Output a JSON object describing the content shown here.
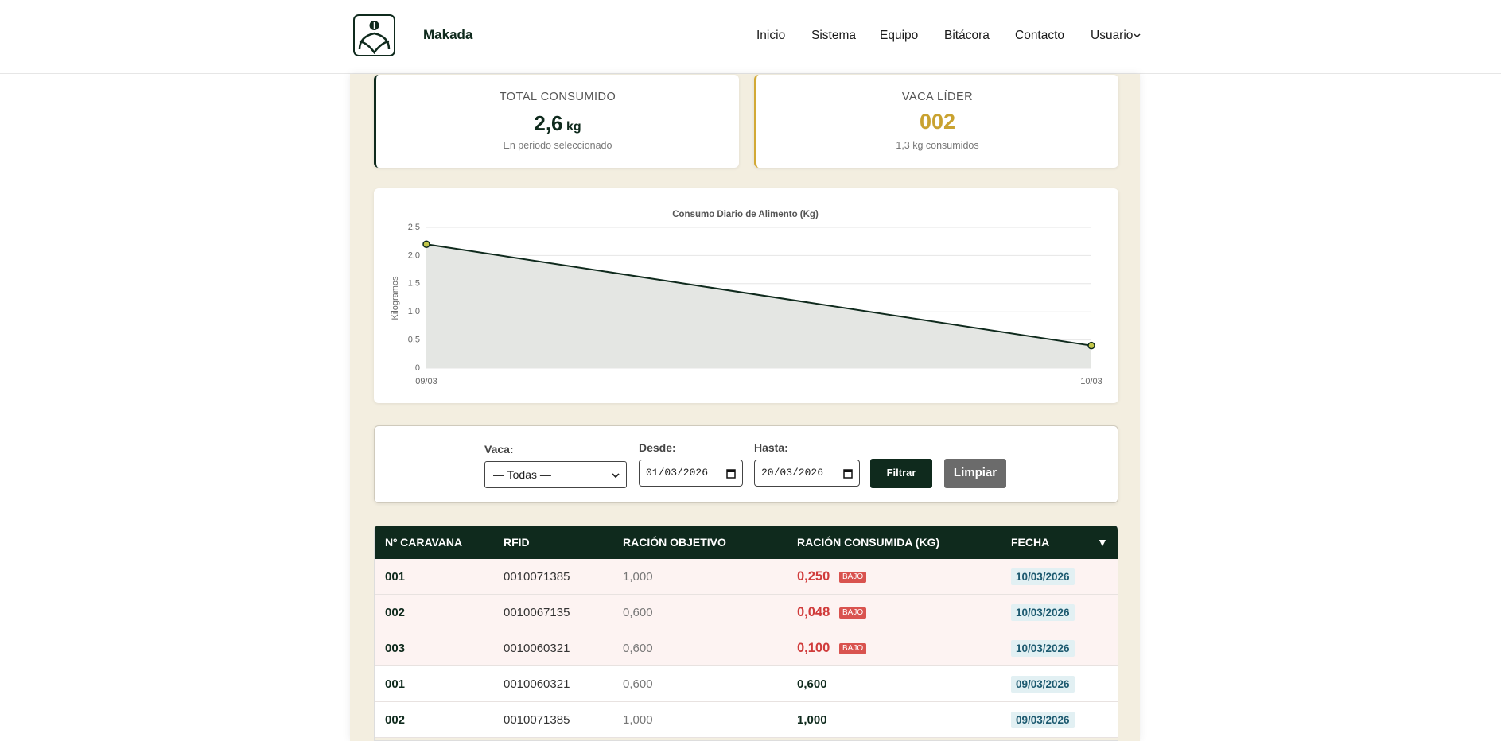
{
  "header": {
    "brand": "Makada",
    "nav": [
      "Inicio",
      "Sistema",
      "Equipo",
      "Bitácora",
      "Contacto",
      "Usuario"
    ]
  },
  "stats": [
    {
      "label": "TOTAL CONSUMIDO",
      "value": "2,6",
      "unit": "kg",
      "note": "En periodo seleccionado"
    },
    {
      "label": "VACA LÍDER",
      "value": "002",
      "note": "1,3 kg consumidos"
    }
  ],
  "chart": {
    "type": "line",
    "title": "Consumo Diario de Alimento (Kg)",
    "y_label": "Kilogramos",
    "categories": [
      "09/03",
      "10/03"
    ],
    "values": [
      2.2,
      0.4
    ],
    "color": "#0f2a1d",
    "fill": "#e4e6e3",
    "marker_color": "#c2c64a",
    "grid": true,
    "ylim": [
      0,
      2.5
    ],
    "yticks": [
      0,
      {
        "value": 0.5,
        "label": "0,5"
      },
      {
        "value": 1,
        "label": "1,0"
      },
      {
        "value": 1.5,
        "label": "1,5"
      },
      {
        "value": 2,
        "label": "2,0"
      },
      {
        "value": 2.5,
        "label": "2,5"
      }
    ]
  },
  "filters": {
    "vaca_label": "Vaca:",
    "vaca_value": "— Todas —",
    "desde_label": "Desde:",
    "desde_value": "01/03/2026",
    "hasta_label": "Hasta:",
    "hasta_value": "20/03/2026",
    "filter_button": "Filtrar",
    "clear_button": "Limpiar"
  },
  "table": {
    "columns": [
      "Nº CARAVANA",
      "RFID",
      "RACIÓN OBJETIVO",
      "RACIÓN CONSUMIDA (KG)",
      "FECHA"
    ],
    "sort_indicator": "▼",
    "rows": [
      {
        "caravana": "001",
        "rfid": "0010071385",
        "objetivo": "1,000",
        "consumida": "0,250",
        "badge": "BAJO",
        "fecha": "10/03/2026"
      },
      {
        "caravana": "002",
        "rfid": "0010067135",
        "objetivo": "0,600",
        "consumida": "0,048",
        "badge": "BAJO",
        "fecha": "10/03/2026"
      },
      {
        "caravana": "003",
        "rfid": "0010060321",
        "objetivo": "0,600",
        "consumida": "0,100",
        "badge": "BAJO",
        "fecha": "10/03/2026"
      },
      {
        "caravana": "001",
        "rfid": "0010060321",
        "objetivo": "0,600",
        "consumida": "0,600",
        "fecha": "09/03/2026"
      },
      {
        "caravana": "002",
        "rfid": "0010071385",
        "objetivo": "1,000",
        "consumida": "1,000",
        "fecha": "09/03/2026"
      }
    ]
  }
}
